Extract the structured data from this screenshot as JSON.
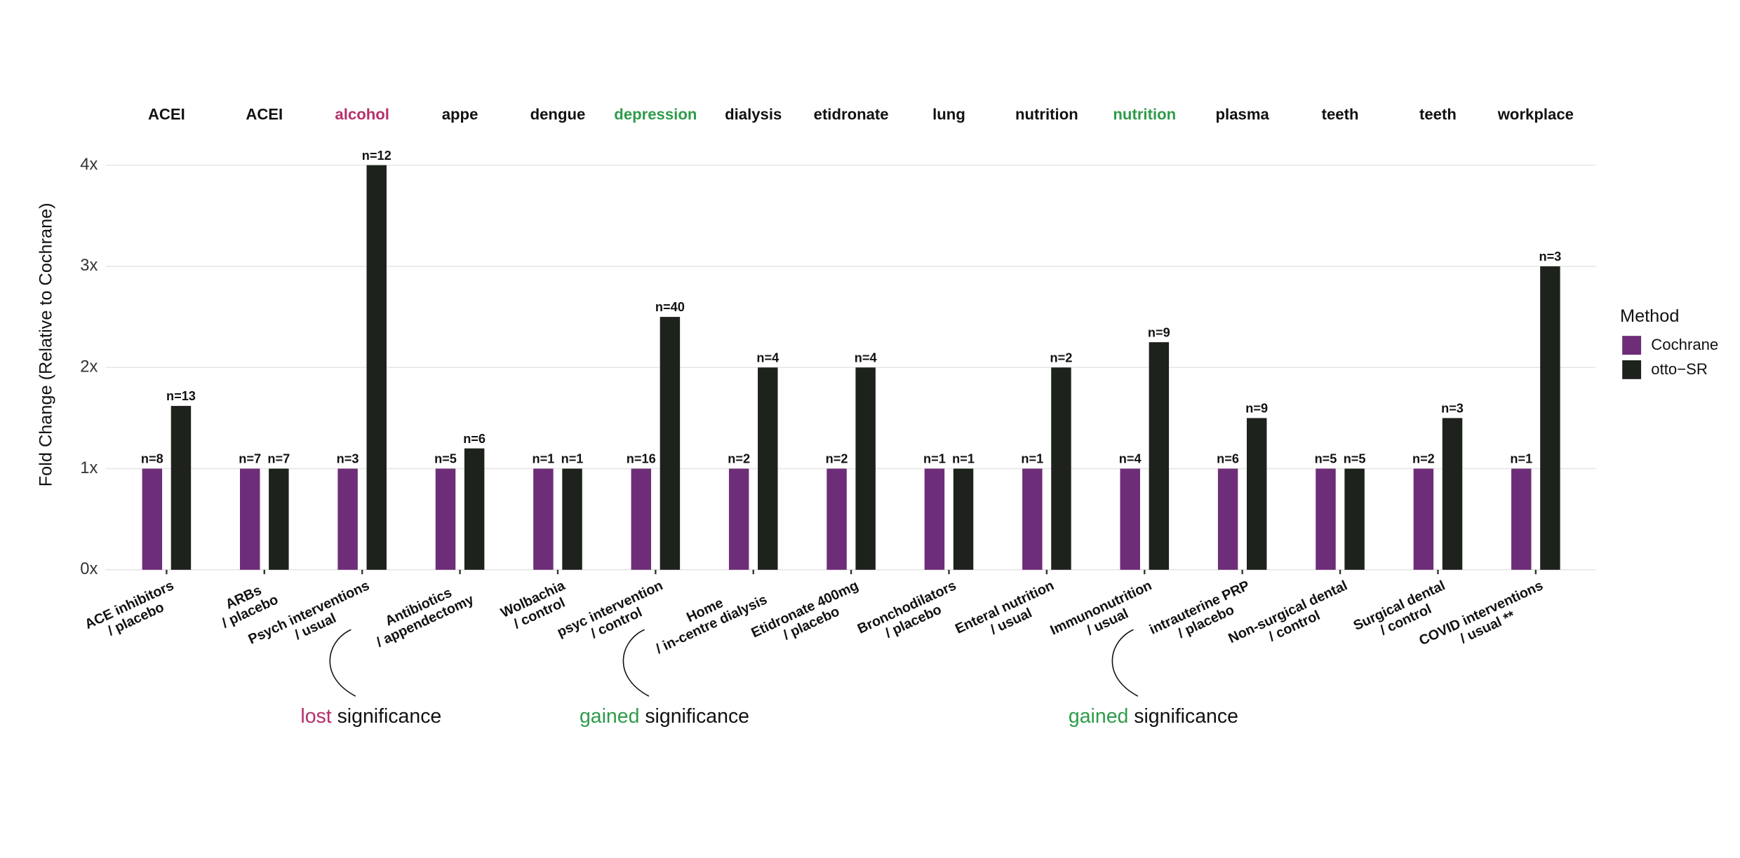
{
  "chart_data": {
    "type": "bar",
    "y_label": "Fold Change (Relative to Cochrane)",
    "panels": [
      {
        "label": "ACEI",
        "color": "#111111"
      },
      {
        "label": "ACEI",
        "color": "#111111"
      },
      {
        "label": "alcohol",
        "color": "#b5306a"
      },
      {
        "label": "appe",
        "color": "#111111"
      },
      {
        "label": "dengue",
        "color": "#111111"
      },
      {
        "label": "depression",
        "color": "#2e9b4a"
      },
      {
        "label": "dialysis",
        "color": "#111111"
      },
      {
        "label": "etidronate",
        "color": "#111111"
      },
      {
        "label": "lung",
        "color": "#111111"
      },
      {
        "label": "nutrition",
        "color": "#111111"
      },
      {
        "label": "nutrition",
        "color": "#2e9b4a"
      },
      {
        "label": "plasma",
        "color": "#111111"
      },
      {
        "label": "teeth",
        "color": "#111111"
      },
      {
        "label": "teeth",
        "color": "#111111"
      },
      {
        "label": "workplace",
        "color": "#111111"
      }
    ],
    "categories": [
      [
        "ACE inhibitors",
        "/ placebo"
      ],
      [
        "ARBs",
        "/ placebo"
      ],
      [
        "Psych interventions",
        "/ usual"
      ],
      [
        "Antibiotics",
        "/ appendectomy"
      ],
      [
        "Wolbachia",
        "/ control"
      ],
      [
        "psyc intervention",
        "/ control"
      ],
      [
        "Home",
        "/ in-centre dialysis"
      ],
      [
        "Etidronate 400mg",
        "/ placebo"
      ],
      [
        "Bronchodilators",
        "/ placebo"
      ],
      [
        "Enteral nutrition",
        "/ usual"
      ],
      [
        "Immunonutrition",
        "/ usual"
      ],
      [
        "intrauterine PRP",
        "/ placebo"
      ],
      [
        "Non-surgical dental",
        "/ control"
      ],
      [
        "Surgical dental",
        "/ control"
      ],
      [
        "COVID interventions",
        "/ usual **"
      ]
    ],
    "series": [
      {
        "name": "Cochrane",
        "color": "#6e2d78",
        "values": [
          1,
          1,
          1,
          1,
          1,
          1,
          1,
          1,
          1,
          1,
          1,
          1,
          1,
          1,
          1
        ],
        "labels": [
          "n=8",
          "n=7",
          "n=3",
          "n=5",
          "n=1",
          "n=16",
          "n=2",
          "n=2",
          "n=1",
          "n=1",
          "n=4",
          "n=6",
          "n=5",
          "n=2",
          "n=1"
        ]
      },
      {
        "name": "otto−SR",
        "color": "#1e221c",
        "values": [
          1.62,
          1,
          4,
          1.2,
          1,
          2.5,
          2,
          2,
          1,
          2,
          2.25,
          1.5,
          1,
          1.5,
          3
        ],
        "labels": [
          "n=13",
          "n=7",
          "n=12",
          "n=6",
          "n=1",
          "n=40",
          "n=4",
          "n=4",
          "n=1",
          "n=2",
          "n=9",
          "n=9",
          "n=5",
          "n=3",
          "n=3"
        ]
      }
    ],
    "legend_title": "Method",
    "ylim": [
      0,
      4
    ],
    "yticks": [
      {
        "value": 0,
        "label": "0x"
      },
      {
        "value": 1,
        "label": "1x"
      },
      {
        "value": 2,
        "label": "2x"
      },
      {
        "value": 3,
        "label": "3x"
      },
      {
        "value": 4,
        "label": "4x"
      }
    ],
    "grid": true,
    "annotations": [
      {
        "highlight": "lost",
        "color": "#b5306a",
        "text": "significance",
        "panel": 2
      },
      {
        "highlight": "gained",
        "color": "#2e9b4a",
        "text": "significance",
        "panel": 5
      },
      {
        "highlight": "gained",
        "color": "#2e9b4a",
        "text": "significance",
        "panel": 10
      }
    ]
  }
}
